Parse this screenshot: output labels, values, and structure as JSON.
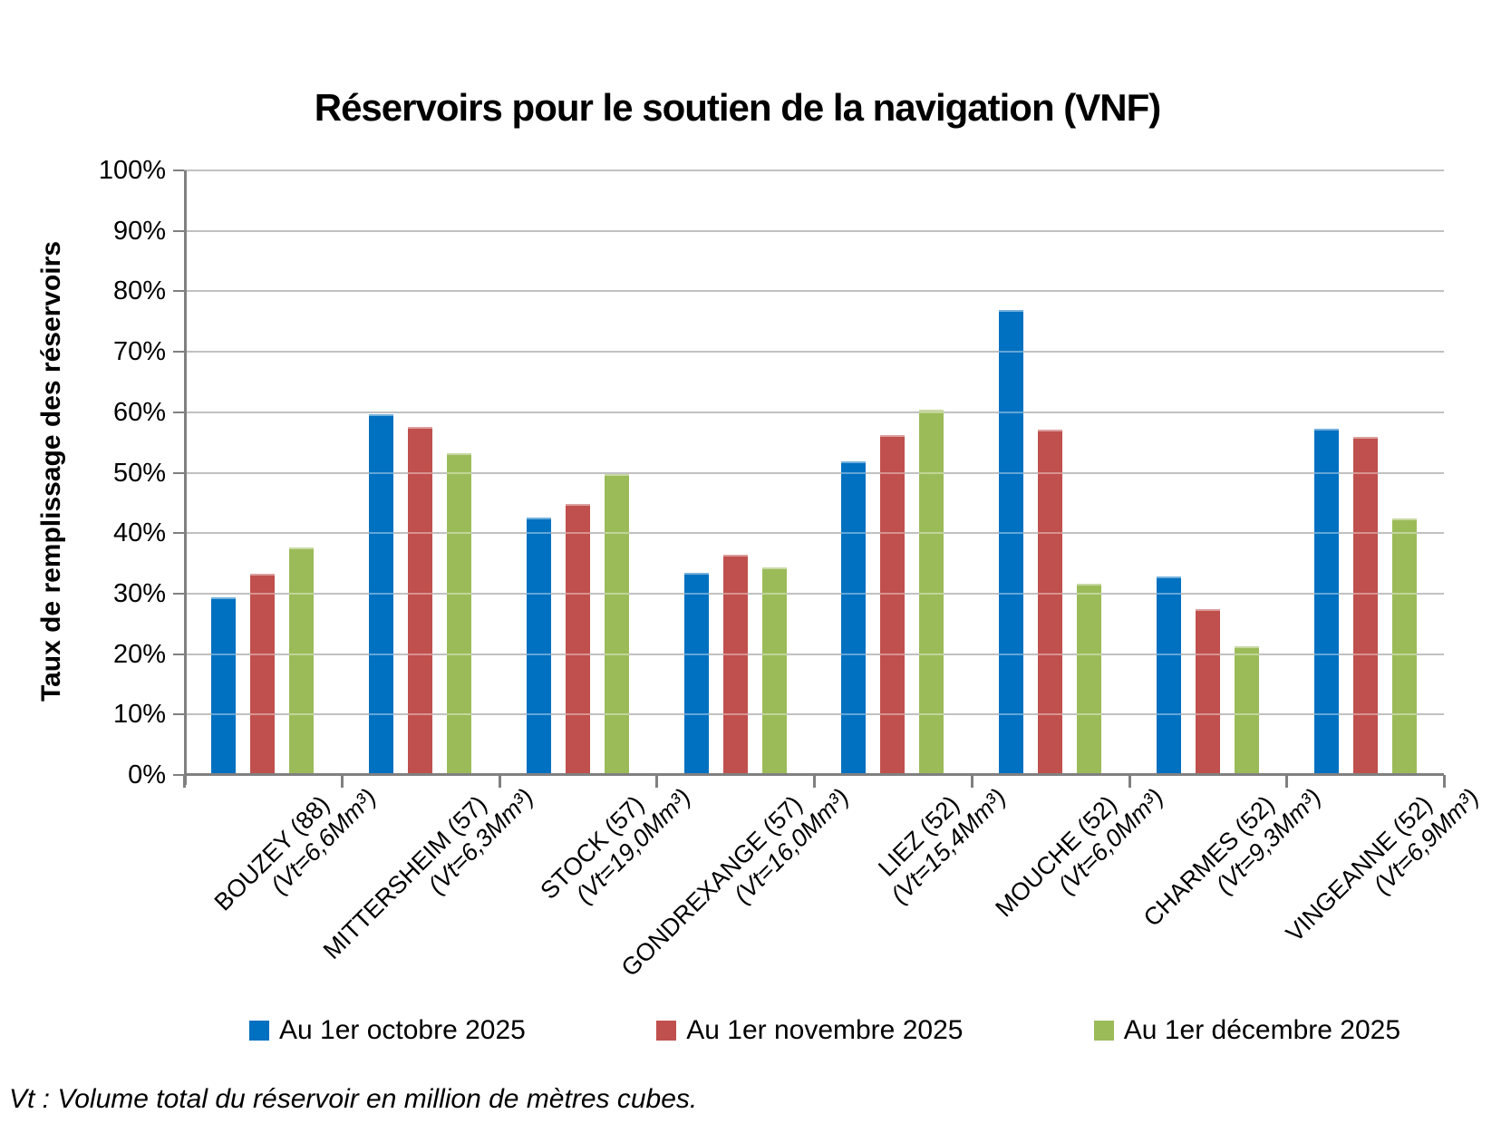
{
  "chart_data": {
    "type": "bar",
    "title": "Réservoirs pour le soutien de la navigation (VNF)",
    "ylabel": "Taux de remplissage des réservoirs",
    "xlabel": "",
    "ylim": [
      0,
      100
    ],
    "y_ticks": [
      "0%",
      "10%",
      "20%",
      "30%",
      "40%",
      "50%",
      "60%",
      "70%",
      "80%",
      "90%",
      "100%"
    ],
    "grid": true,
    "legend_position": "bottom",
    "categories": [
      {
        "name": "BOUZEY (88)",
        "vt": "(Vt=6,6Mm³)"
      },
      {
        "name": "MITTERSHEIM (57)",
        "vt": "(Vt=6,3Mm³)"
      },
      {
        "name": "STOCK (57)",
        "vt": "(Vt=19,0Mm³)"
      },
      {
        "name": "GONDREXANGE (57)",
        "vt": "(Vt=16,0Mm³)"
      },
      {
        "name": "LIEZ (52)",
        "vt": "(Vt=15,4Mm³)"
      },
      {
        "name": "MOUCHE (52)",
        "vt": "(Vt=6,0Mm³)"
      },
      {
        "name": "CHARMES (52)",
        "vt": "(Vt=9,3Mm³)"
      },
      {
        "name": "VINGEANNE (52)",
        "vt": "(Vt=6,9Mm³)"
      }
    ],
    "series": [
      {
        "name": "Au 1er octobre 2025",
        "color": "#0070C0",
        "values": [
          29.4,
          59.6,
          42.6,
          33.4,
          51.9,
          76.9,
          32.8,
          57.2
        ]
      },
      {
        "name": "Au 1er novembre 2025",
        "color": "#C0504D",
        "values": [
          33.3,
          57.5,
          44.9,
          36.4,
          56.2,
          57.1,
          27.5,
          55.9
        ]
      },
      {
        "name": "Au 1er décembre 2025",
        "color": "#9BBB59",
        "values": [
          37.7,
          53.2,
          49.8,
          34.4,
          60.4,
          31.7,
          21.3,
          42.4
        ]
      }
    ],
    "note": "Vt : Volume total du réservoir en million de mètres cubes."
  }
}
